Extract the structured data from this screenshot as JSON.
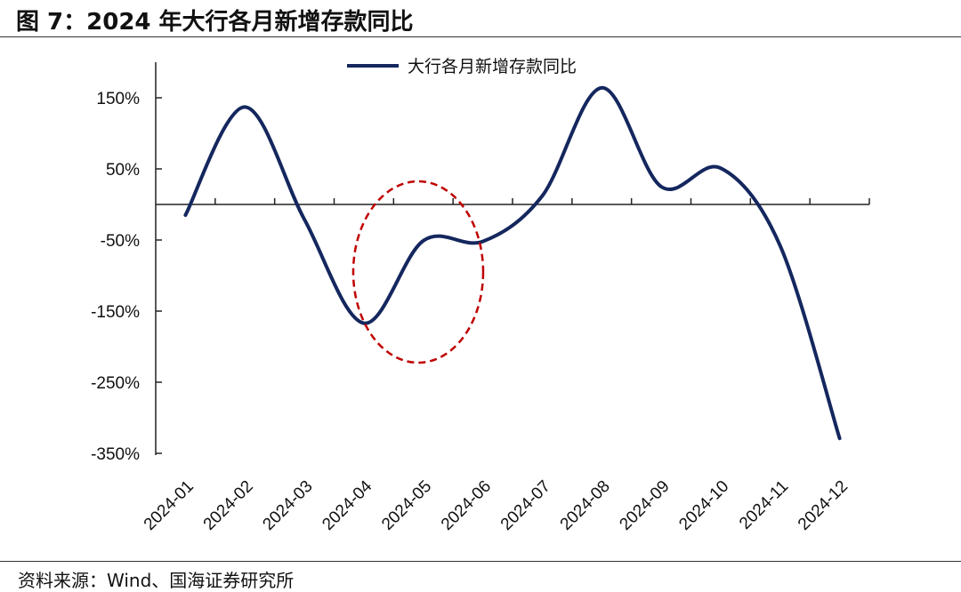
{
  "title": "图 7：2024 年大行各月新增存款同比",
  "source": "资料来源：Wind、国海证券研究所",
  "chart_data": {
    "type": "line",
    "title": "图 7：2024 年大行各月新增存款同比",
    "categories": [
      "2024-01",
      "2024-02",
      "2024-03",
      "2024-04",
      "2024-05",
      "2024-06",
      "2024-07",
      "2024-08",
      "2024-09",
      "2024-10",
      "2024-11",
      "2024-12"
    ],
    "series": [
      {
        "name": "大行各月新增存款同比",
        "color": "#14275e",
        "values": [
          -15,
          137,
          -21,
          -167,
          -51,
          -52,
          12,
          164,
          25,
          51,
          -58,
          -329
        ]
      }
    ],
    "yticks": [
      150,
      50,
      -50,
      -150,
      -250,
      -350
    ],
    "ytick_labels": [
      "150%",
      "50%",
      "-50%",
      "-150%",
      "-250%",
      "-350%"
    ],
    "ylim": [
      -350,
      150
    ],
    "smooth": true,
    "grid": false,
    "legend": "top-center",
    "annotation": {
      "shape": "dashed-ellipse",
      "color": "#c00000",
      "highlights": [
        "2024-04",
        "2024-05",
        "2024-06"
      ]
    }
  }
}
